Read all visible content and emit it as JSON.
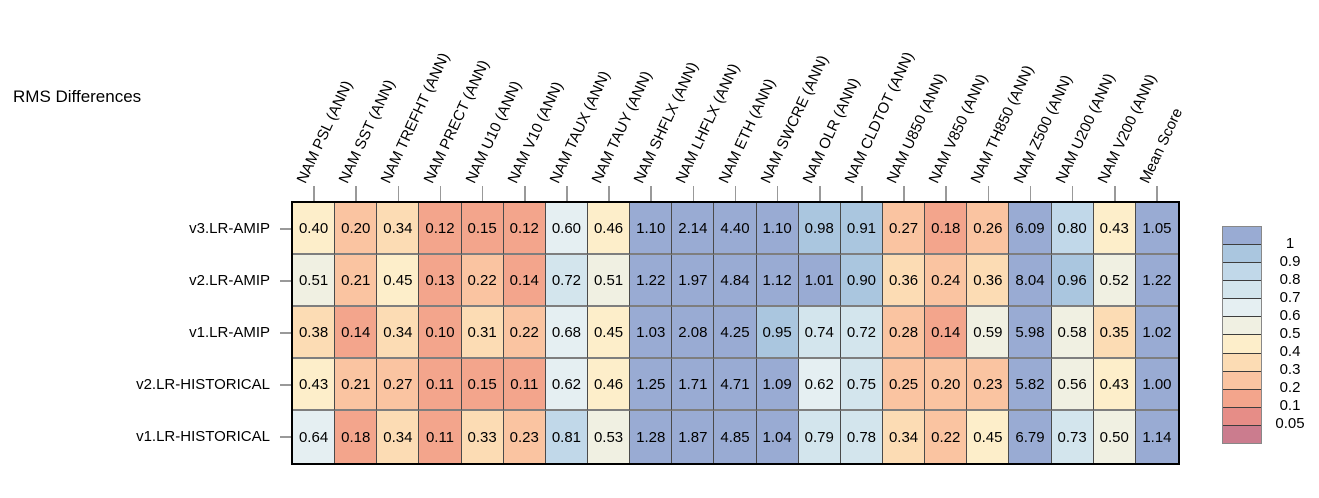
{
  "chart_data": {
    "type": "heatmap",
    "title": "RMS Differences",
    "columns": [
      "NAM PSL (ANN)",
      "NAM SST (ANN)",
      "NAM TREFHT (ANN)",
      "NAM PRECT (ANN)",
      "NAM U10 (ANN)",
      "NAM V10 (ANN)",
      "NAM TAUX (ANN)",
      "NAM TAUY (ANN)",
      "NAM SHFLX (ANN)",
      "NAM LHFLX (ANN)",
      "NAM ETH (ANN)",
      "NAM SWCRE (ANN)",
      "NAM OLR (ANN)",
      "NAM CLDTOT (ANN)",
      "NAM U850 (ANN)",
      "NAM V850 (ANN)",
      "NAM TH850 (ANN)",
      "NAM Z500 (ANN)",
      "NAM U200 (ANN)",
      "NAM V200 (ANN)",
      "Mean Score"
    ],
    "rows": [
      "v3.LR-AMIP",
      "v2.LR-AMIP",
      "v1.LR-AMIP",
      "v2.LR-HISTORICAL",
      "v1.LR-HISTORICAL"
    ],
    "values": [
      [
        0.4,
        0.2,
        0.34,
        0.12,
        0.15,
        0.12,
        0.6,
        0.46,
        1.1,
        2.14,
        4.4,
        1.1,
        0.98,
        0.91,
        0.27,
        0.18,
        0.26,
        6.09,
        0.8,
        0.43,
        1.05
      ],
      [
        0.51,
        0.21,
        0.45,
        0.13,
        0.22,
        0.14,
        0.72,
        0.51,
        1.22,
        1.97,
        4.84,
        1.12,
        1.01,
        0.9,
        0.36,
        0.24,
        0.36,
        8.04,
        0.96,
        0.52,
        1.22
      ],
      [
        0.38,
        0.14,
        0.34,
        0.1,
        0.31,
        0.22,
        0.68,
        0.45,
        1.03,
        2.08,
        4.25,
        0.95,
        0.74,
        0.72,
        0.28,
        0.14,
        0.59,
        5.98,
        0.58,
        0.35,
        1.02
      ],
      [
        0.43,
        0.21,
        0.27,
        0.11,
        0.15,
        0.11,
        0.62,
        0.46,
        1.25,
        1.71,
        4.71,
        1.09,
        0.62,
        0.75,
        0.25,
        0.2,
        0.23,
        5.82,
        0.56,
        0.43,
        1.0
      ],
      [
        0.64,
        0.18,
        0.34,
        0.11,
        0.33,
        0.23,
        0.81,
        0.53,
        1.28,
        1.87,
        4.85,
        1.04,
        0.79,
        0.78,
        0.34,
        0.22,
        0.45,
        6.79,
        0.73,
        0.5,
        1.14
      ]
    ],
    "value_decimals": 2,
    "colorbar": {
      "tick_labels": [
        "1",
        "0.9",
        "0.8",
        "0.7",
        "0.6",
        "0.5",
        "0.4",
        "0.3",
        "0.2",
        "0.1",
        "0.05"
      ],
      "levels": [
        1.0,
        0.9,
        0.8,
        0.7,
        0.6,
        0.5,
        0.4,
        0.3,
        0.2,
        0.1,
        0.05
      ],
      "colors": [
        "#99abd3",
        "#aac6df",
        "#c1d8e9",
        "#d3e5ed",
        "#e5eff2",
        "#f0f0e2",
        "#fdeeca",
        "#fcdcb4",
        "#fac4a1",
        "#f3a58c",
        "#e68d87",
        "#cb7c8e"
      ]
    }
  }
}
